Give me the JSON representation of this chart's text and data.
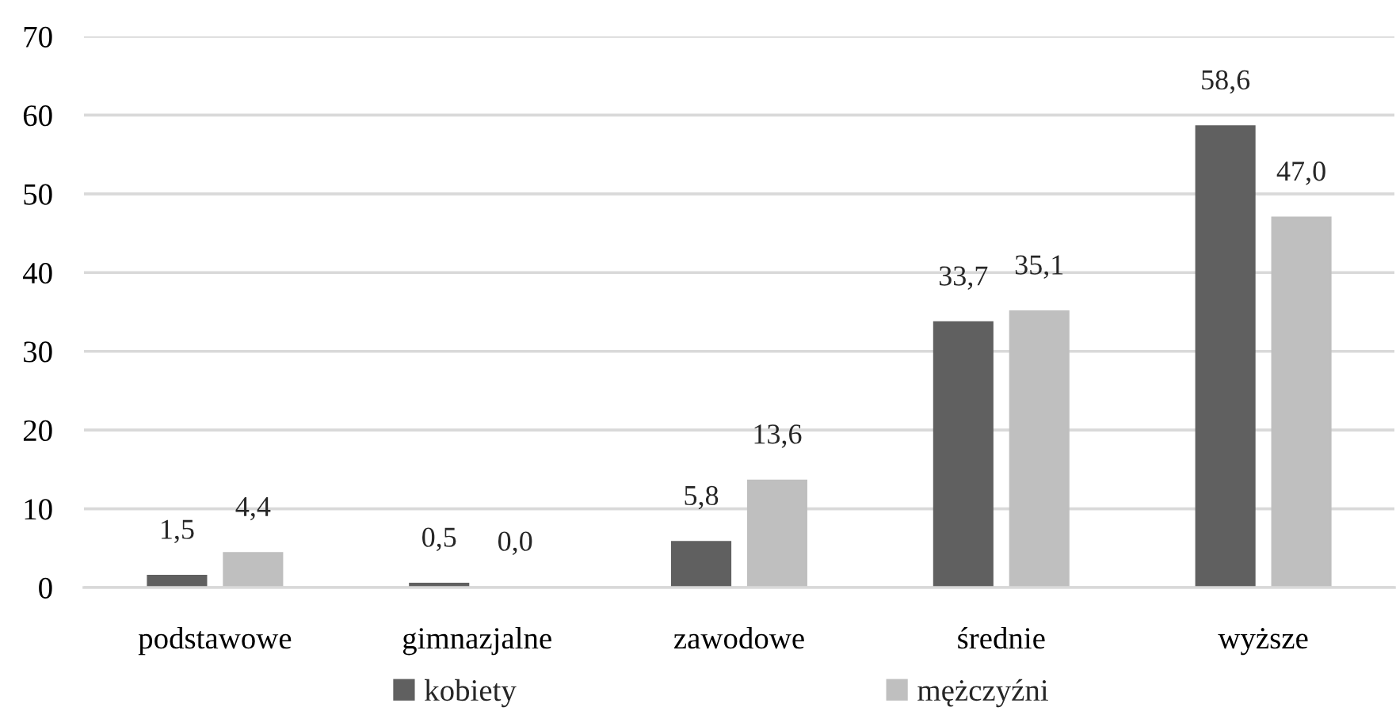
{
  "chart_data": {
    "type": "bar",
    "categories": [
      "podstawowe",
      "gimnazjalne",
      "zawodowe",
      "średnie",
      "wyższe"
    ],
    "series": [
      {
        "name": "kobiety",
        "color": "#606060",
        "values": [
          1.5,
          0.5,
          5.8,
          33.7,
          58.6
        ],
        "value_labels": [
          "1,5",
          "0,5",
          "5,8",
          "33,7",
          "58,6"
        ]
      },
      {
        "name": "mężczyźni",
        "color": "#bfbfbf",
        "values": [
          4.4,
          0.0,
          13.6,
          35.1,
          47.0
        ],
        "value_labels": [
          "4,4",
          "0,0",
          "13,6",
          "35,1",
          "47,0"
        ]
      }
    ],
    "ylim": [
      0,
      70
    ],
    "yticks": [
      0,
      10,
      20,
      30,
      40,
      50,
      60,
      70
    ],
    "grid": "y",
    "legend": "bottom"
  }
}
